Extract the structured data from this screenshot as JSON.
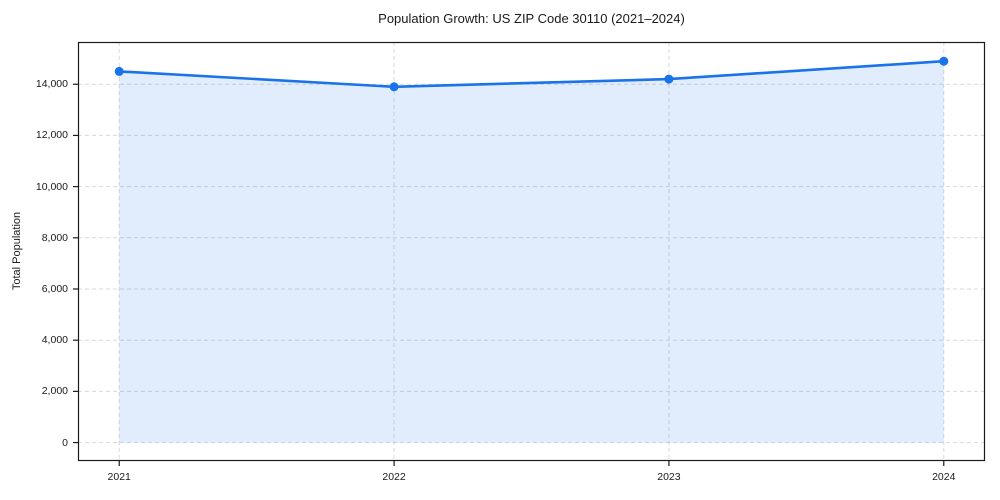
{
  "chart_data": {
    "type": "area",
    "title": "Population Growth: US ZIP Code 30110 (2021–2024)",
    "xlabel": "",
    "ylabel": "Total Population",
    "x": [
      2021,
      2022,
      2023,
      2024
    ],
    "x_tick_labels": [
      "2021",
      "2022",
      "2023",
      "2024"
    ],
    "series": [
      {
        "name": "Total Population",
        "values": [
          14500,
          13900,
          14200,
          14900
        ]
      }
    ],
    "yticks": [
      0,
      2000,
      4000,
      6000,
      8000,
      10000,
      12000,
      14000
    ],
    "ytick_labels": [
      "0",
      "2,000",
      "4,000",
      "6,000",
      "8,000",
      "10,000",
      "12,000",
      "14,000"
    ],
    "xlim": [
      2020.85,
      2024.15
    ],
    "ylim": [
      -720,
      15650
    ],
    "grid": true,
    "grid_style": "dashed",
    "legend": "none",
    "colors": {
      "line": "#1a73e8",
      "marker": "#1a73e8",
      "fill": "rgba(26,115,232,0.13)",
      "grid": "#d9d9d9",
      "spine": "#1a1a1a",
      "text": "#1a1a1a"
    }
  }
}
